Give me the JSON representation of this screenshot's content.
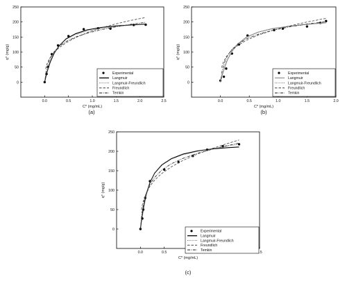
{
  "chart_data": [
    {
      "panel_label": "(a)",
      "type": "scatter",
      "xlabel": "C* (mg/mL)",
      "ylabel": "q* (mg/g)",
      "xlim": [
        -0.5,
        2.5
      ],
      "ylim": [
        -50,
        250
      ],
      "xticks": [
        "0.0",
        "0.5",
        "1.0",
        "1.5",
        "2.0",
        "2.5"
      ],
      "yticks": [
        "0",
        "50",
        "100",
        "150",
        "200",
        "250"
      ],
      "legend_position": "bottom-right",
      "legend": [
        "Experimental",
        "Langmuir",
        "Langmuir-Freundlich",
        "Freundlich",
        "Temkin"
      ],
      "series": [
        {
          "name": "Experimental",
          "style": "points",
          "color": "#000000",
          "x": [
            0.0,
            0.04,
            0.07,
            0.15,
            0.28,
            0.5,
            0.82,
            1.12,
            1.38,
            1.87,
            2.12
          ],
          "y": [
            0,
            27,
            51,
            93,
            122,
            153,
            176,
            179,
            178,
            190,
            191
          ]
        },
        {
          "name": "Langmuir",
          "style": "solid",
          "color": "#000000",
          "x": [
            0.0,
            0.03,
            0.07,
            0.12,
            0.2,
            0.3,
            0.45,
            0.65,
            0.9,
            1.2,
            1.5,
            1.8,
            2.12
          ],
          "y": [
            0,
            21,
            44,
            68,
            96,
            120,
            144,
            161,
            174,
            182,
            187,
            190,
            193
          ]
        },
        {
          "name": "Langmuir-Freundlich",
          "style": "dotted",
          "color": "#555555",
          "x": [
            0.0,
            0.03,
            0.07,
            0.12,
            0.2,
            0.3,
            0.45,
            0.65,
            0.9,
            1.2,
            1.5,
            1.8,
            2.12
          ],
          "y": [
            0,
            24,
            48,
            72,
            98,
            121,
            142,
            158,
            170,
            179,
            185,
            189,
            192
          ]
        },
        {
          "name": "Freundlich",
          "style": "dashed",
          "color": "#555555",
          "x": [
            0.02,
            0.05,
            0.1,
            0.2,
            0.3,
            0.45,
            0.65,
            0.9,
            1.2,
            1.5,
            1.8,
            2.12
          ],
          "y": [
            44,
            61,
            78,
            99,
            114,
            131,
            148,
            165,
            181,
            194,
            205,
            215
          ]
        },
        {
          "name": "Temkin",
          "style": "dashdot",
          "color": "#333333",
          "x": [
            0.01,
            0.03,
            0.07,
            0.12,
            0.2,
            0.3,
            0.45,
            0.65,
            0.9,
            1.2,
            1.5,
            1.8,
            2.12
          ],
          "y": [
            10,
            35,
            60,
            81,
            101,
            118,
            135,
            150,
            163,
            175,
            184,
            192,
            199
          ]
        }
      ]
    },
    {
      "panel_label": "(b)",
      "type": "scatter",
      "xlabel": "C* (mg/mL)",
      "ylabel": "q* (mg/g)",
      "xlim": [
        -0.5,
        2.0
      ],
      "ylim": [
        -50,
        250
      ],
      "xticks": [
        "0.0",
        "0.5",
        "1.0",
        "1.5",
        "2.0"
      ],
      "yticks": [
        "0",
        "50",
        "100",
        "150",
        "200",
        "250"
      ],
      "legend_position": "bottom-right",
      "legend": [
        "Experimental",
        "Langmuir",
        "Langmuir-Freundlich",
        "Freundlich",
        "Temkin"
      ],
      "series": [
        {
          "name": "Experimental",
          "style": "points",
          "color": "#000000",
          "x": [
            0.0,
            0.06,
            0.1,
            0.2,
            0.32,
            0.47,
            0.93,
            1.08,
            1.5,
            1.73,
            1.83
          ],
          "y": [
            5,
            18,
            45,
            95,
            125,
            155,
            173,
            178,
            185,
            197,
            203
          ]
        },
        {
          "name": "Langmuir",
          "style": "solid",
          "color": "#999999",
          "x": [
            0.0,
            0.03,
            0.07,
            0.12,
            0.2,
            0.3,
            0.45,
            0.65,
            0.9,
            1.2,
            1.5,
            1.83
          ],
          "y": [
            0,
            22,
            47,
            73,
            102,
            126,
            149,
            166,
            178,
            186,
            192,
            197
          ]
        },
        {
          "name": "Langmuir-Freundlich",
          "style": "dotted",
          "color": "#555555",
          "x": [
            0.0,
            0.03,
            0.07,
            0.12,
            0.2,
            0.3,
            0.45,
            0.65,
            0.9,
            1.2,
            1.5,
            1.83
          ],
          "y": [
            0,
            25,
            50,
            77,
            105,
            128,
            150,
            166,
            177,
            186,
            193,
            198
          ]
        },
        {
          "name": "Freundlich",
          "style": "dashed",
          "color": "#555555",
          "x": [
            0.02,
            0.05,
            0.1,
            0.2,
            0.3,
            0.45,
            0.65,
            0.9,
            1.2,
            1.5,
            1.83
          ],
          "y": [
            48,
            66,
            84,
            107,
            122,
            139,
            156,
            172,
            187,
            200,
            212
          ]
        },
        {
          "name": "Temkin",
          "style": "dashdot",
          "color": "#333333",
          "x": [
            0.01,
            0.03,
            0.07,
            0.12,
            0.2,
            0.3,
            0.45,
            0.65,
            0.9,
            1.2,
            1.5,
            1.83
          ],
          "y": [
            10,
            38,
            65,
            87,
            109,
            126,
            144,
            159,
            172,
            184,
            193,
            201
          ]
        }
      ]
    },
    {
      "panel_label": "(c)",
      "type": "scatter",
      "xlabel": "C* (mg/mL)",
      "ylabel": "q* (mg/g)",
      "xlim": [
        -0.5,
        2.5
      ],
      "ylim": [
        -50,
        250
      ],
      "xticks": [
        "0.0",
        "0.5",
        "1.0",
        "1.5",
        "2.0",
        "2.5"
      ],
      "yticks": [
        "0",
        "50",
        "100",
        "150",
        "200",
        "250"
      ],
      "legend_position": "bottom-right",
      "legend": [
        "Experimental",
        "Langmuir",
        "Langmuir-Freundlich",
        "Freundlich",
        "Temkin"
      ],
      "series": [
        {
          "name": "Experimental",
          "style": "points",
          "color": "#000000",
          "x": [
            0.0,
            0.04,
            0.06,
            0.1,
            0.2,
            0.5,
            0.8,
            1.1,
            1.4,
            1.73,
            2.07
          ],
          "y": [
            0,
            27,
            50,
            80,
            123,
            153,
            172,
            188,
            204,
            213,
            218
          ]
        },
        {
          "name": "Langmuir",
          "style": "solid",
          "color": "#000000",
          "x": [
            0.0,
            0.03,
            0.07,
            0.12,
            0.2,
            0.3,
            0.45,
            0.65,
            0.9,
            1.2,
            1.5,
            1.8,
            2.07
          ],
          "y": [
            0,
            28,
            58,
            88,
            120,
            144,
            165,
            181,
            193,
            201,
            206,
            209,
            211
          ]
        },
        {
          "name": "Langmuir-Freundlich",
          "style": "dotted",
          "color": "#555555",
          "x": [
            0.0,
            0.03,
            0.07,
            0.12,
            0.2,
            0.3,
            0.45,
            0.65,
            0.9,
            1.2,
            1.5,
            1.8,
            2.07
          ],
          "y": [
            0,
            31,
            61,
            90,
            121,
            144,
            164,
            180,
            191,
            200,
            207,
            213,
            218
          ]
        },
        {
          "name": "Freundlich",
          "style": "dashed",
          "color": "#555555",
          "x": [
            0.02,
            0.05,
            0.1,
            0.2,
            0.3,
            0.45,
            0.65,
            0.9,
            1.2,
            1.5,
            1.8,
            2.07
          ],
          "y": [
            50,
            68,
            86,
            110,
            126,
            143,
            160,
            177,
            193,
            207,
            219,
            229
          ]
        },
        {
          "name": "Temkin",
          "style": "dashdot",
          "color": "#333333",
          "x": [
            0.01,
            0.03,
            0.07,
            0.12,
            0.2,
            0.3,
            0.45,
            0.65,
            0.9,
            1.2,
            1.5,
            1.8,
            2.07
          ],
          "y": [
            12,
            40,
            68,
            92,
            115,
            133,
            152,
            168,
            182,
            195,
            205,
            214,
            221
          ]
        }
      ]
    }
  ]
}
